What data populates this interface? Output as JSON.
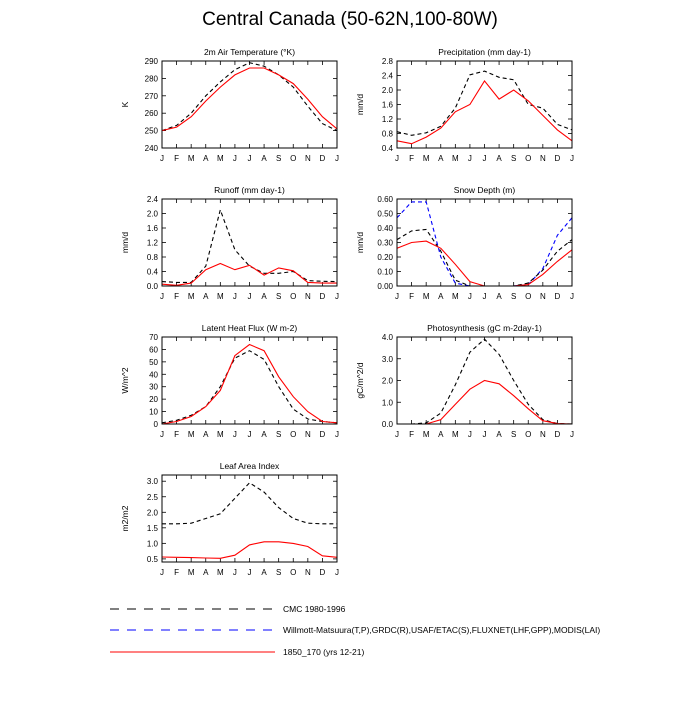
{
  "page": {
    "title": "Central Canada (50-62N,100-80W)"
  },
  "months": [
    "J",
    "F",
    "M",
    "A",
    "M",
    "J",
    "J",
    "A",
    "S",
    "O",
    "N",
    "D",
    "J"
  ],
  "legend": [
    {
      "label": "CMC 1980-1996",
      "color": "#000000",
      "style": "dashed"
    },
    {
      "label": "Willmott-Matsuura(T,P),GRDC(R),USAF/ETAC(S),FLUXNET(LHF,GPP),MODIS(LAI)",
      "color": "#0000ff",
      "style": "dashed"
    },
    {
      "label": "1850_170 (yrs 12-21)",
      "color": "#ff0000",
      "style": "solid"
    }
  ],
  "chart_data": [
    {
      "type": "line",
      "title": "2m Air Temperature (°K)",
      "ylabel": "K",
      "ylim": [
        240,
        290
      ],
      "yticks": [
        "240",
        "250",
        "260",
        "270",
        "280",
        "290"
      ],
      "categories": [
        "J",
        "F",
        "M",
        "A",
        "M",
        "J",
        "J",
        "A",
        "S",
        "O",
        "N",
        "D",
        "J"
      ],
      "series": [
        {
          "name": "CMC 1980-1996",
          "color": "#000000",
          "dash": true,
          "values": [
            250,
            253,
            260,
            270,
            278,
            285,
            289,
            287,
            282,
            275,
            264,
            254,
            250
          ]
        },
        {
          "name": "1850_170 (yrs 12-21)",
          "color": "#ff0000",
          "dash": false,
          "values": [
            250,
            252,
            258,
            267,
            275,
            282,
            286,
            286,
            282,
            277,
            268,
            258,
            251
          ]
        }
      ]
    },
    {
      "type": "line",
      "title": "Precipitation (mm day-1)",
      "ylabel": "mm/d",
      "ylim": [
        0.4,
        2.8
      ],
      "yticks": [
        "0.4",
        "0.8",
        "1.2",
        "1.6",
        "2.0",
        "2.4",
        "2.8"
      ],
      "categories": [
        "J",
        "F",
        "M",
        "A",
        "M",
        "J",
        "J",
        "A",
        "S",
        "O",
        "N",
        "D",
        "J"
      ],
      "series": [
        {
          "name": "CMC 1980-1996",
          "color": "#000000",
          "dash": true,
          "values": [
            0.85,
            0.75,
            0.82,
            1.0,
            1.5,
            2.42,
            2.52,
            2.35,
            2.28,
            1.6,
            1.5,
            1.05,
            0.9
          ]
        },
        {
          "name": "1850_170 (yrs 12-21)",
          "color": "#ff0000",
          "dash": false,
          "values": [
            0.6,
            0.52,
            0.7,
            0.95,
            1.4,
            1.6,
            2.25,
            1.75,
            2.0,
            1.7,
            1.3,
            0.9,
            0.6
          ]
        }
      ]
    },
    {
      "type": "line",
      "title": "Runoff (mm day-1)",
      "ylabel": "mm/d",
      "ylim": [
        0,
        2.4
      ],
      "yticks": [
        "0.0",
        "0.4",
        "0.8",
        "1.2",
        "1.6",
        "2.0",
        "2.4"
      ],
      "categories": [
        "J",
        "F",
        "M",
        "A",
        "M",
        "J",
        "J",
        "A",
        "S",
        "O",
        "N",
        "D",
        "J"
      ],
      "series": [
        {
          "name": "CMC 1980-1996",
          "color": "#000000",
          "dash": true,
          "values": [
            0.12,
            0.1,
            0.1,
            0.55,
            2.1,
            1.0,
            0.55,
            0.35,
            0.35,
            0.4,
            0.15,
            0.13,
            0.12
          ]
        },
        {
          "name": "1850_170 (yrs 12-21)",
          "color": "#ff0000",
          "dash": false,
          "values": [
            0.05,
            0.02,
            0.08,
            0.45,
            0.62,
            0.45,
            0.57,
            0.3,
            0.5,
            0.42,
            0.1,
            0.08,
            0.08
          ]
        }
      ]
    },
    {
      "type": "line",
      "title": "Snow Depth (m)",
      "ylabel": "mm/d",
      "ylim": [
        0,
        0.6
      ],
      "yticks": [
        "0.00",
        "0.10",
        "0.20",
        "0.30",
        "0.40",
        "0.50",
        "0.60"
      ],
      "categories": [
        "J",
        "F",
        "M",
        "A",
        "M",
        "J",
        "J",
        "A",
        "S",
        "O",
        "N",
        "D",
        "J"
      ],
      "series": [
        {
          "name": "Willmott-Matsuura(T,P),GRDC(R),USAF/ETAC(S),FLUXNET(LHF,GPP),MODIS(LAI)",
          "color": "#0000ff",
          "dash": true,
          "values": [
            0.47,
            0.58,
            0.58,
            0.2,
            0.02,
            0.0,
            0.0,
            0.0,
            0.0,
            0.01,
            0.12,
            0.35,
            0.47
          ]
        },
        {
          "name": "CMC 1980-1996",
          "color": "#000000",
          "dash": true,
          "values": [
            0.32,
            0.38,
            0.39,
            0.24,
            0.04,
            0.0,
            0.0,
            0.0,
            0.0,
            0.02,
            0.11,
            0.24,
            0.32
          ]
        },
        {
          "name": "1850_170 (yrs 12-21)",
          "color": "#ff0000",
          "dash": false,
          "values": [
            0.26,
            0.3,
            0.31,
            0.26,
            0.15,
            0.03,
            0.0,
            0.0,
            0.0,
            0.01,
            0.08,
            0.17,
            0.25
          ]
        }
      ]
    },
    {
      "type": "line",
      "title": "Latent Heat Flux (W m-2)",
      "ylabel": "W/m^2",
      "ylim": [
        0,
        70
      ],
      "yticks": [
        "0",
        "10",
        "20",
        "30",
        "40",
        "50",
        "60",
        "70"
      ],
      "categories": [
        "J",
        "F",
        "M",
        "A",
        "M",
        "J",
        "J",
        "A",
        "S",
        "O",
        "N",
        "D",
        "J"
      ],
      "series": [
        {
          "name": "CMC 1980-1996",
          "color": "#000000",
          "dash": true,
          "values": [
            1,
            3,
            7,
            14,
            30,
            53,
            59,
            52,
            30,
            12,
            4,
            2,
            1
          ]
        },
        {
          "name": "1850_170 (yrs 12-21)",
          "color": "#ff0000",
          "dash": false,
          "values": [
            0,
            2,
            6,
            14,
            27,
            55,
            64,
            59,
            38,
            22,
            10,
            2,
            1
          ]
        }
      ]
    },
    {
      "type": "line",
      "title": "Photosynthesis (gC m-2day-1)",
      "ylabel": "gC/m^2/d",
      "ylim": [
        0,
        4
      ],
      "yticks": [
        "0.0",
        "1.0",
        "2.0",
        "3.0",
        "4.0"
      ],
      "categories": [
        "J",
        "F",
        "M",
        "A",
        "M",
        "J",
        "J",
        "A",
        "S",
        "O",
        "N",
        "D",
        "J"
      ],
      "series": [
        {
          "name": "CMC 1980-1996",
          "color": "#000000",
          "dash": true,
          "values": [
            0.0,
            0.0,
            0.05,
            0.5,
            1.8,
            3.3,
            3.9,
            3.2,
            2.0,
            0.9,
            0.2,
            0.02,
            0.0
          ]
        },
        {
          "name": "1850_170 (yrs 12-21)",
          "color": "#ff0000",
          "dash": false,
          "values": [
            0.0,
            0.0,
            0.0,
            0.2,
            0.9,
            1.6,
            2.0,
            1.85,
            1.3,
            0.7,
            0.15,
            0.02,
            0.0
          ]
        }
      ]
    },
    {
      "type": "line",
      "title": "Leaf Area Index",
      "ylabel": "m2/m2",
      "ylim": [
        0.4,
        3.2
      ],
      "yticks": [
        "0.5",
        "1.0",
        "1.5",
        "2.0",
        "2.5",
        "3.0"
      ],
      "categories": [
        "J",
        "F",
        "M",
        "A",
        "M",
        "J",
        "J",
        "A",
        "S",
        "O",
        "N",
        "D",
        "J"
      ],
      "series": [
        {
          "name": "CMC 1980-1996",
          "color": "#000000",
          "dash": true,
          "values": [
            1.63,
            1.63,
            1.65,
            1.8,
            1.95,
            2.45,
            2.95,
            2.65,
            2.15,
            1.8,
            1.65,
            1.63,
            1.63
          ]
        },
        {
          "name": "1850_170 (yrs 12-21)",
          "color": "#ff0000",
          "dash": false,
          "values": [
            0.56,
            0.55,
            0.54,
            0.53,
            0.52,
            0.62,
            0.95,
            1.05,
            1.05,
            1.0,
            0.9,
            0.6,
            0.55
          ]
        }
      ]
    }
  ]
}
